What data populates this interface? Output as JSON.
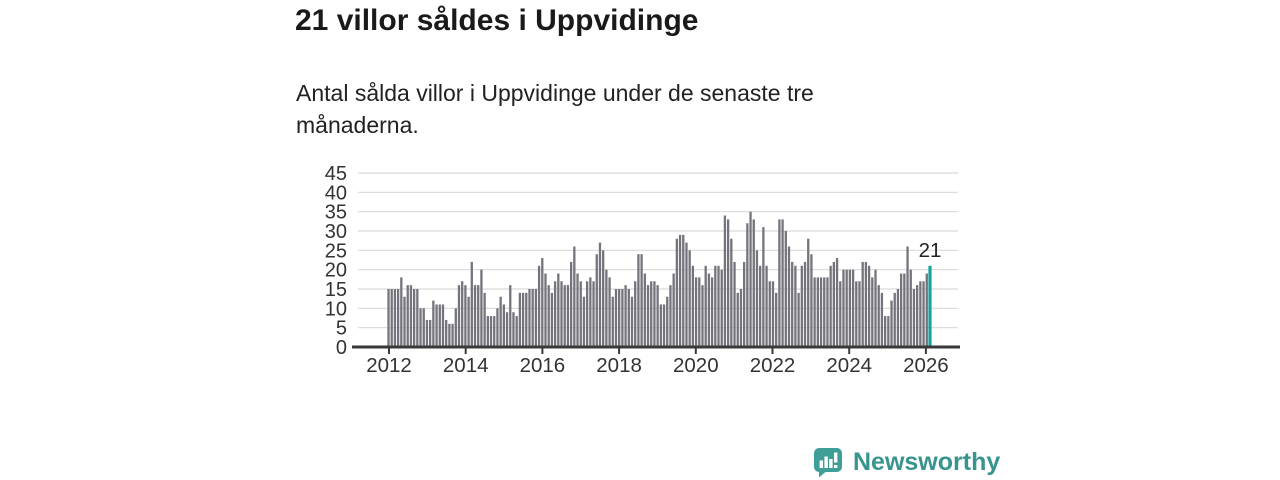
{
  "header": {
    "title": "21 villor såldes i Uppvidinge",
    "subtitle": "Antal sålda villor i Uppvidinge under de senaste tre månaderna."
  },
  "chart_data": {
    "type": "bar",
    "title": "21 villor såldes i Uppvidinge",
    "subtitle": "Antal sålda villor i Uppvidinge under de senaste tre månaderna.",
    "x_unit": "month",
    "x_start": "2012-01",
    "x_ticks": [
      2012,
      2014,
      2016,
      2018,
      2020,
      2022,
      2024,
      2026
    ],
    "y_ticks": [
      0,
      5,
      10,
      15,
      20,
      25,
      30,
      35,
      40,
      45
    ],
    "ylim": [
      0,
      45
    ],
    "grid": "horizontal",
    "values": [
      15,
      15,
      15,
      15,
      18,
      13,
      16,
      16,
      15,
      15,
      10,
      10,
      7,
      7,
      12,
      11,
      11,
      11,
      7,
      6,
      6,
      10,
      16,
      17,
      16,
      13,
      22,
      16,
      16,
      20,
      14,
      8,
      8,
      8,
      10,
      13,
      11,
      9,
      16,
      9,
      8,
      14,
      14,
      14,
      15,
      15,
      15,
      21,
      23,
      19,
      16,
      14,
      17,
      19,
      17,
      16,
      16,
      22,
      26,
      19,
      17,
      13,
      17,
      18,
      17,
      24,
      27,
      25,
      20,
      18,
      13,
      15,
      15,
      15,
      16,
      15,
      13,
      17,
      24,
      24,
      19,
      16,
      17,
      17,
      16,
      11,
      11,
      13,
      16,
      19,
      28,
      29,
      29,
      27,
      25,
      21,
      18,
      18,
      16,
      21,
      19,
      18,
      21,
      21,
      20,
      34,
      33,
      28,
      22,
      14,
      15,
      22,
      32,
      35,
      33,
      25,
      21,
      31,
      21,
      17,
      17,
      14,
      33,
      33,
      30,
      26,
      22,
      21,
      14,
      21,
      22,
      28,
      24,
      18,
      18,
      18,
      18,
      18,
      21,
      22,
      23,
      17,
      20,
      20,
      20,
      20,
      17,
      17,
      22,
      22,
      21,
      18,
      20,
      16,
      14,
      8,
      8,
      12,
      14,
      15,
      19,
      19,
      26,
      20,
      15,
      16,
      17,
      17,
      19,
      21
    ],
    "highlight": {
      "index": 169,
      "value": 21,
      "label": "21"
    },
    "colors": {
      "bar": "#74747c",
      "highlight": "#17a39d",
      "grid": "#d9d9d9",
      "axis": "#3a3a3a",
      "axis_text": "#333333",
      "annotation_text": "#222222"
    }
  },
  "branding": {
    "name": "Newsworthy",
    "icon_color": "#3f9e98",
    "text_color": "#37948e"
  }
}
